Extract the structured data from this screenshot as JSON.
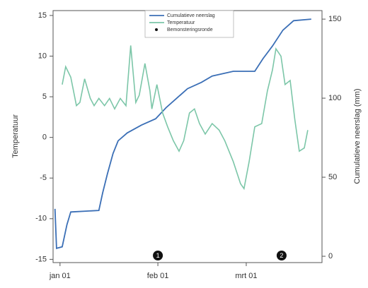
{
  "chart_data": {
    "type": "line",
    "ylabel": "Temperatuur",
    "y2label": "Cumulatieve neerslag (mm)",
    "xlim": [
      -2.2,
      83
    ],
    "xticks": [
      {
        "value": 0,
        "label": "jan 01"
      },
      {
        "value": 31,
        "label": "feb 01"
      },
      {
        "value": 59,
        "label": "mrt 01"
      }
    ],
    "ylim": [
      -15.4,
      15.6
    ],
    "yticks": [
      -15,
      -10,
      -5,
      0,
      5,
      10,
      15
    ],
    "y2lim": [
      -4,
      155.4
    ],
    "y2ticks": [
      0,
      50,
      100,
      150
    ],
    "grid": false,
    "legend": "top",
    "series": [
      {
        "name": "Cumulatieve neerslag",
        "color": "#3b6fb6",
        "axis": "y2",
        "x": [
          -1.6,
          -1.1,
          0.7,
          2.2,
          3.4,
          12.3,
          13.5,
          15,
          16.8,
          18.4,
          21.3,
          25.8,
          30.3,
          33.6,
          37,
          40.4,
          44.8,
          48.2,
          54.9,
          61.7,
          64.3,
          67.3,
          70.6,
          74,
          79.6
        ],
        "values": [
          30,
          5,
          6,
          20,
          28,
          29,
          40,
          52,
          65,
          73,
          78,
          83,
          87,
          94,
          100,
          106,
          110,
          114,
          117,
          117,
          125,
          133,
          143,
          149,
          150
        ]
      },
      {
        "name": "Temperatuur",
        "color": "#7cc6a8",
        "axis": "y",
        "x": [
          0.7,
          1.8,
          3.4,
          5.2,
          6.3,
          7.8,
          9.6,
          10.8,
          12.3,
          14.1,
          15.7,
          17.3,
          19.1,
          20.9,
          22.4,
          24,
          25.1,
          26.9,
          28.5,
          29.1,
          30.7,
          32.5,
          34.1,
          35.9,
          37.7,
          39.2,
          41,
          42.6,
          44.2,
          46,
          48.2,
          50.4,
          52.2,
          54.9,
          57.2,
          58.3,
          59.9,
          61.7,
          63.9,
          65.7,
          67.3,
          68.4,
          70,
          71.3,
          72.9,
          74.4,
          75.8,
          77.4,
          78.5
        ],
        "values": [
          6.5,
          8.7,
          7.4,
          3.9,
          4.3,
          7.2,
          4.8,
          3.9,
          4.8,
          3.9,
          4.8,
          3.5,
          4.8,
          3.9,
          11.3,
          4.3,
          5.2,
          9.1,
          5.7,
          3.5,
          6.5,
          3,
          1.3,
          -0.4,
          -1.7,
          -0.4,
          3,
          3.5,
          1.7,
          0.4,
          1.7,
          0.9,
          -0.4,
          -3,
          -5.7,
          -6.3,
          -3,
          1.3,
          1.7,
          5.7,
          8.3,
          10.9,
          10,
          6.5,
          7,
          2.2,
          -1.7,
          -1.3,
          0.9
        ]
      }
    ],
    "sampling_label": "Bemonsteringsronde",
    "sampling": [
      {
        "x": 31,
        "label": "1"
      },
      {
        "x": 70.2,
        "label": "2"
      }
    ]
  }
}
